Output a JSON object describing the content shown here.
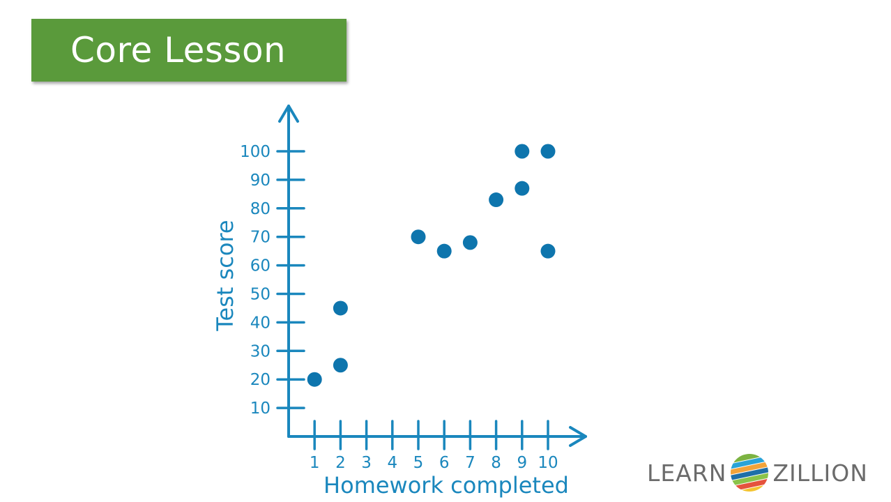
{
  "header": {
    "badge_label": "Core Lesson",
    "badge_color": "#5a9a3b"
  },
  "logo": {
    "left_word": "LEARN",
    "right_word": "ZILLION",
    "icon": "striped-globe-icon"
  },
  "chart_data": {
    "type": "scatter",
    "title": "",
    "xlabel": "Homework completed",
    "ylabel": "Test score",
    "x_ticks": [
      1,
      2,
      3,
      4,
      5,
      6,
      7,
      8,
      9,
      10
    ],
    "y_ticks": [
      10,
      20,
      30,
      40,
      50,
      60,
      70,
      80,
      90,
      100
    ],
    "xlim": [
      0,
      11
    ],
    "ylim": [
      0,
      100
    ],
    "grid": false,
    "color": "#0e75ad",
    "axis_color": "#1a87bd",
    "points": [
      {
        "x": 1,
        "y": 20
      },
      {
        "x": 2,
        "y": 25
      },
      {
        "x": 2,
        "y": 45
      },
      {
        "x": 5,
        "y": 70
      },
      {
        "x": 6,
        "y": 65
      },
      {
        "x": 7,
        "y": 68
      },
      {
        "x": 8,
        "y": 83
      },
      {
        "x": 9,
        "y": 87
      },
      {
        "x": 9,
        "y": 100
      },
      {
        "x": 10,
        "y": 100
      },
      {
        "x": 10,
        "y": 65
      }
    ]
  }
}
